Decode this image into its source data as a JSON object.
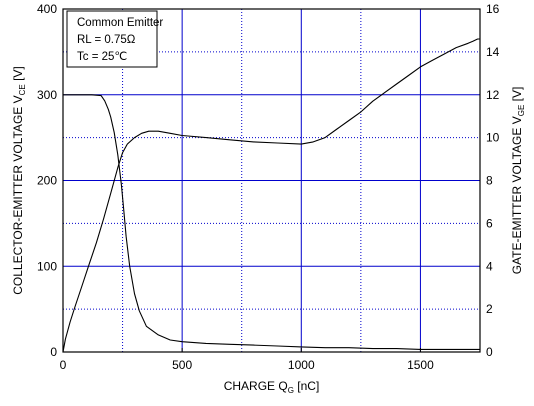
{
  "chart_data": {
    "type": "line",
    "annotations": [
      "Common Emitter",
      "RL = 0.75Ω",
      "Tc = 25℃"
    ],
    "xaxis": {
      "label": "CHARGE  Q",
      "label_sub": "G",
      "label_unit": "  [nC]",
      "range": [
        0,
        1750
      ],
      "ticks": [
        "0",
        "500",
        "1000",
        "1500"
      ],
      "tick_values": [
        0,
        500,
        1000,
        1500
      ]
    },
    "yaxis_left": {
      "label": "COLLECTOR-EMITTER  VOLTAGE  V",
      "label_sub": "CE",
      "label_unit": "  [V]",
      "range": [
        0,
        400
      ],
      "ticks": [
        "0",
        "100",
        "200",
        "300",
        "400"
      ],
      "tick_values": [
        0,
        100,
        200,
        300,
        400
      ]
    },
    "yaxis_right": {
      "label": "GATE-EMITTER  VOLTAGE  V",
      "label_sub": "GE",
      "label_unit": "  [V]",
      "range": [
        0,
        16
      ],
      "ticks": [
        "0",
        "2",
        "4",
        "6",
        "8",
        "10",
        "12",
        "14",
        "16"
      ],
      "tick_values": [
        0,
        2,
        4,
        6,
        8,
        10,
        12,
        14,
        16
      ]
    },
    "grid": {
      "solid": true,
      "dotted": true,
      "color": "#0000cc"
    },
    "series": [
      {
        "axis": "left",
        "x": [
          0,
          60,
          120,
          160,
          175,
          190,
          200,
          215,
          230,
          245,
          255,
          265,
          280,
          300,
          320,
          350,
          400,
          450,
          500,
          600,
          700,
          800,
          900,
          1000,
          1100,
          1200,
          1300,
          1400,
          1500,
          1600,
          1700,
          1750
        ],
        "y": [
          300,
          300,
          300,
          299,
          293,
          283,
          274,
          256,
          230,
          195,
          165,
          135,
          100,
          68,
          48,
          30,
          20,
          14,
          12,
          10,
          9,
          8,
          7,
          6,
          5,
          5,
          4,
          4,
          3,
          3,
          3,
          3
        ]
      },
      {
        "axis": "right",
        "x": [
          0,
          10,
          30,
          50,
          80,
          110,
          140,
          170,
          200,
          230,
          250,
          270,
          300,
          330,
          360,
          400,
          450,
          500,
          600,
          700,
          800,
          900,
          1000,
          1050,
          1100,
          1150,
          1200,
          1250,
          1300,
          1350,
          1400,
          1450,
          1500,
          1550,
          1600,
          1650,
          1700,
          1720,
          1740,
          1750
        ],
        "y": [
          0,
          0.6,
          1.4,
          2.1,
          3.1,
          4.1,
          5.1,
          6.2,
          7.4,
          8.6,
          9.3,
          9.7,
          10.0,
          10.2,
          10.3,
          10.3,
          10.2,
          10.1,
          10.0,
          9.9,
          9.8,
          9.75,
          9.7,
          9.8,
          10.0,
          10.4,
          10.8,
          11.2,
          11.7,
          12.1,
          12.5,
          12.9,
          13.3,
          13.6,
          13.9,
          14.2,
          14.4,
          14.5,
          14.6,
          14.6
        ]
      }
    ],
    "colors": {
      "series": "#000000",
      "grid": "#0000cc",
      "frame": "#000000"
    }
  }
}
